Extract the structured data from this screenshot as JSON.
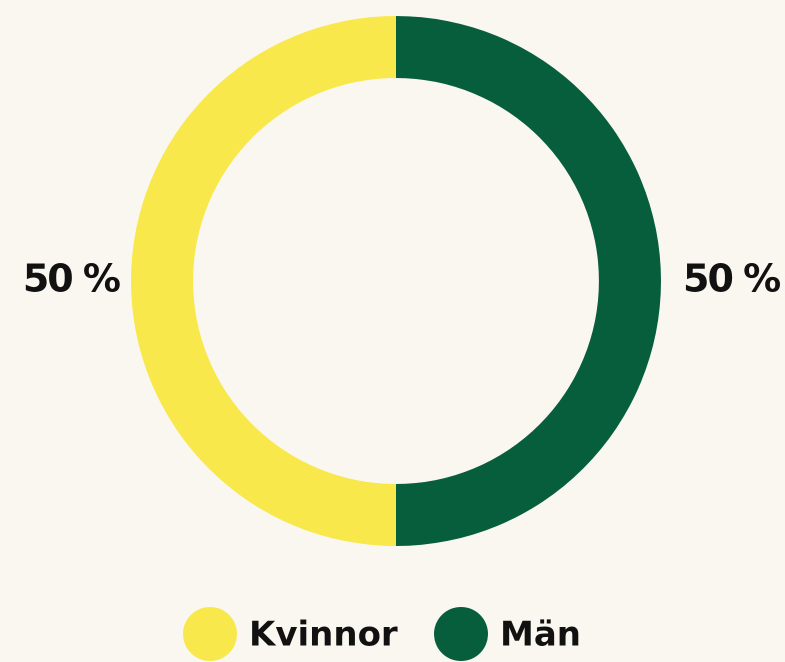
{
  "chart_data": {
    "type": "pie",
    "donut": true,
    "categories": [
      "Kvinnor",
      "Män"
    ],
    "values": [
      50,
      50
    ],
    "value_labels": [
      "50 %",
      "50 %"
    ],
    "colors": [
      "#f8e84c",
      "#075e3d"
    ]
  }
}
